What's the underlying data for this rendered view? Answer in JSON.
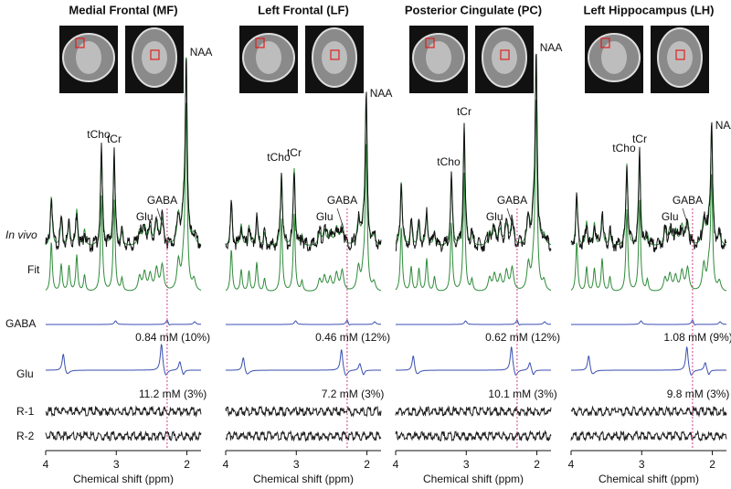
{
  "row_labels": {
    "in_vivo": "In vivo",
    "fit": "Fit",
    "gaba": "GABA",
    "glu": "Glu",
    "r1": "R-1",
    "r2": "R-2"
  },
  "panels": [
    {
      "title": "Medial Frontal (MF)",
      "peaks": {
        "naa": "NAA",
        "tcr": "tCr",
        "tcho": "tCho",
        "gaba": "GABA",
        "glu": "Glu"
      },
      "gaba_result": "0.84 mM (10%)",
      "glu_result": "11.2 mM (3%)",
      "xlim": [
        4,
        1.8
      ],
      "xticks": [
        4,
        3,
        2
      ],
      "xlabel": "Chemical shift (ppm)"
    },
    {
      "title": "Left Frontal (LF)",
      "peaks": {
        "naa": "NAA",
        "tcr": "tCr",
        "tcho": "tCho",
        "gaba": "GABA",
        "glu": "Glu"
      },
      "gaba_result": "0.46 mM (12%)",
      "glu_result": "7.2 mM (3%)",
      "xlim": [
        4,
        1.8
      ],
      "xticks": [
        4,
        3,
        2
      ],
      "xlabel": "Chemical shift (ppm)"
    },
    {
      "title": "Posterior Cingulate (PC)",
      "peaks": {
        "naa": "NAA",
        "tcr": "tCr",
        "tcho": "tCho",
        "gaba": "GABA",
        "glu": "Glu"
      },
      "gaba_result": "0.62 mM (12%)",
      "glu_result": "10.1 mM (3%)",
      "xlim": [
        4,
        1.8
      ],
      "xticks": [
        4,
        3,
        2
      ],
      "xlabel": "Chemical shift (ppm)"
    },
    {
      "title": "Left Hippocampus (LH)",
      "peaks": {
        "naa": "NAA",
        "tcr": "tCr",
        "tcho": "tCho",
        "gaba": "GABA",
        "glu": "Glu"
      },
      "gaba_result": "1.08 mM (9%)",
      "glu_result": "9.8 mM (3%)",
      "xlim": [
        4,
        1.8
      ],
      "xticks": [
        4,
        3,
        2
      ],
      "xlabel": "Chemical shift (ppm)"
    }
  ]
}
